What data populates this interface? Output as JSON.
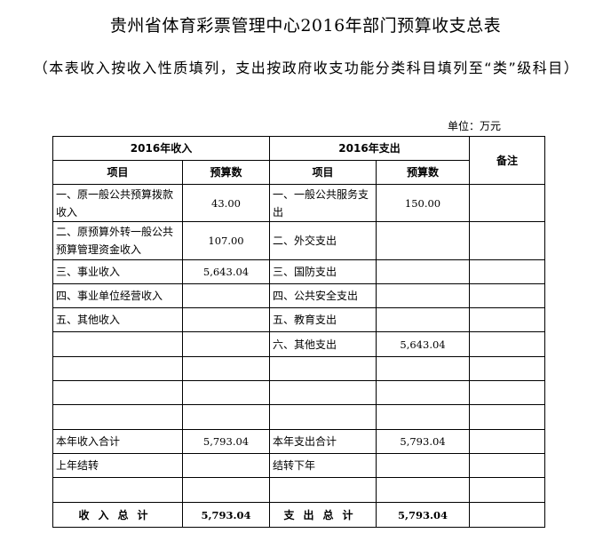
{
  "title": "贵州省体育彩票管理中心2016年部门预算收支总表",
  "subtitle": "（本表收入按收入性质填列，支出按政府收支功能分类科目填列至“类”级科目）",
  "unit": "单位：万元",
  "table": {
    "income_header": "2016年收入",
    "expense_header": "2016年支出",
    "note_header": "备注",
    "item_col": "项目",
    "amount_col": "预算数",
    "rows": [
      [
        "一、原一般公共预算拨款收入",
        "43.00",
        "一、一般公共服务支出",
        "150.00",
        ""
      ],
      [
        "二、原预算外转一般公共预算管理资金收入",
        "107.00",
        "二、外交支出",
        "",
        ""
      ],
      [
        "三、事业收入",
        "5,643.04",
        "三、国防支出",
        "",
        ""
      ],
      [
        "四、事业单位经营收入",
        "",
        "四、公共安全支出",
        "",
        ""
      ],
      [
        "五、其他收入",
        "",
        "五、教育支出",
        "",
        ""
      ],
      [
        "",
        "",
        "六、其他支出",
        "5,643.04",
        ""
      ],
      [
        "",
        "",
        "",
        "",
        ""
      ],
      [
        "",
        "",
        "",
        "",
        ""
      ],
      [
        "",
        "",
        "",
        "",
        ""
      ],
      [
        "本年收入合计",
        "5,793.04",
        "本年支出合计",
        "5,793.04",
        ""
      ],
      [
        "上年结转",
        "",
        "结转下年",
        "",
        ""
      ],
      [
        "",
        "",
        "",
        "",
        ""
      ]
    ],
    "total": {
      "income_label": "收入总计",
      "income_value": "5,793.04",
      "expense_label": "支出总计",
      "expense_value": "5,793.04"
    }
  }
}
